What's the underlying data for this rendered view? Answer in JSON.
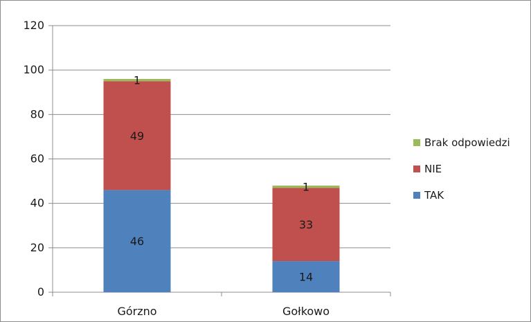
{
  "chart_data": {
    "type": "bar",
    "stacked": true,
    "categories": [
      "Górzno",
      "Gołkowo"
    ],
    "series": [
      {
        "name": "TAK",
        "values": [
          46,
          14
        ],
        "color": "#4f81bd"
      },
      {
        "name": "NIE",
        "values": [
          49,
          33
        ],
        "color": "#c0504d"
      },
      {
        "name": "Brak odpowiedzi",
        "values": [
          1,
          1
        ],
        "color": "#9bbb59"
      }
    ],
    "ylim": [
      0,
      120
    ],
    "yticks": [
      0,
      20,
      40,
      60,
      80,
      100,
      120
    ],
    "grid": true,
    "legend_position": "right",
    "title": "",
    "xlabel": "",
    "ylabel": ""
  }
}
